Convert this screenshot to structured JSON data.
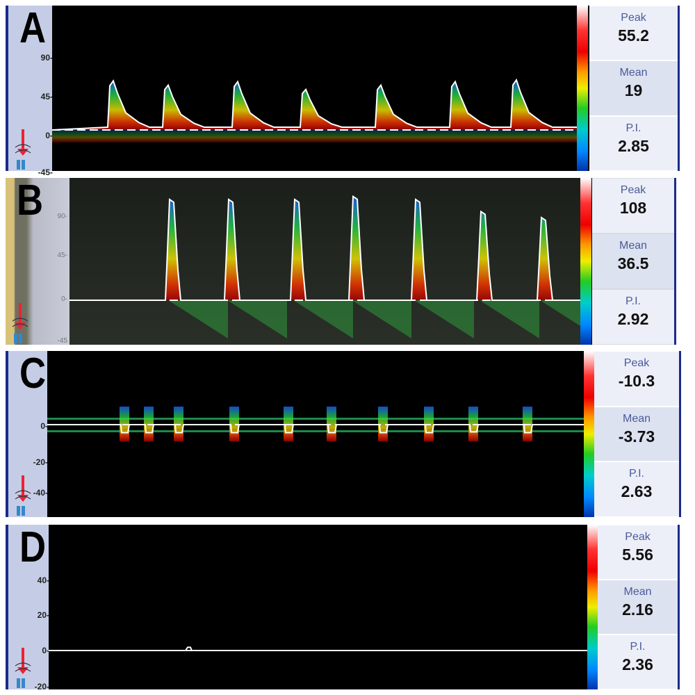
{
  "panels": [
    {
      "id": "A",
      "ticks": [
        "90-",
        "45-",
        "0-",
        "-45-"
      ],
      "peak_label": "Peak",
      "peak": "55.2",
      "mean_label": "Mean",
      "mean": "19",
      "pi_label": "P.I.",
      "pi": "2.85"
    },
    {
      "id": "B",
      "ticks": [
        "90-",
        "45-",
        "0-",
        "-45"
      ],
      "peak_label": "Peak",
      "peak": "108",
      "mean_label": "Mean",
      "mean": "36.5",
      "pi_label": "P.I.",
      "pi": "2.92"
    },
    {
      "id": "C",
      "ticks": [
        "0-",
        "-20-",
        "-40-"
      ],
      "peak_label": "Peak",
      "peak": "-10.3",
      "mean_label": "Mean",
      "mean": "-3.73",
      "pi_label": "P.I.",
      "pi": "2.63"
    },
    {
      "id": "D",
      "ticks": [
        "40-",
        "20-",
        "0-",
        "-20-"
      ],
      "peak_label": "Peak",
      "peak": "5.56",
      "mean_label": "Mean",
      "mean": "2.16",
      "pi_label": "P.I.",
      "pi": "2.36"
    }
  ],
  "colors": {
    "axis_bg": "#c5cde6",
    "border": "#1a2a8a",
    "label": "#4a5a9a",
    "envelope": "#ffffff"
  }
}
